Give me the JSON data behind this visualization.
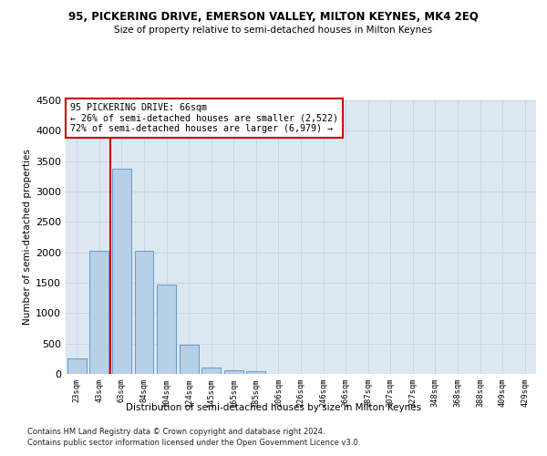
{
  "title": "95, PICKERING DRIVE, EMERSON VALLEY, MILTON KEYNES, MK4 2EQ",
  "subtitle": "Size of property relative to semi-detached houses in Milton Keynes",
  "xlabel": "Distribution of semi-detached houses by size in Milton Keynes",
  "ylabel": "Number of semi-detached properties",
  "categories": [
    "23sqm",
    "43sqm",
    "63sqm",
    "84sqm",
    "104sqm",
    "124sqm",
    "145sqm",
    "165sqm",
    "185sqm",
    "206sqm",
    "226sqm",
    "246sqm",
    "266sqm",
    "287sqm",
    "307sqm",
    "327sqm",
    "348sqm",
    "368sqm",
    "388sqm",
    "409sqm",
    "429sqm"
  ],
  "bar_values": [
    250,
    2020,
    3370,
    2020,
    1470,
    480,
    100,
    55,
    50,
    0,
    0,
    0,
    0,
    0,
    0,
    0,
    0,
    0,
    0,
    0,
    0
  ],
  "bar_color": "#b8cfe8",
  "bar_edgecolor": "#6699cc",
  "ylim": [
    0,
    4500
  ],
  "yticks": [
    0,
    500,
    1000,
    1500,
    2000,
    2500,
    3000,
    3500,
    4000,
    4500
  ],
  "vline_x": 1.5,
  "vline_color": "#cc0000",
  "annotation_line1": "95 PICKERING DRIVE: 66sqm",
  "annotation_line2": "← 26% of semi-detached houses are smaller (2,522)",
  "annotation_line3": "72% of semi-detached houses are larger (6,979) →",
  "annotation_box_color": "#cc0000",
  "footer1": "Contains HM Land Registry data © Crown copyright and database right 2024.",
  "footer2": "Contains public sector information licensed under the Open Government Licence v3.0.",
  "grid_color": "#c8d4e8",
  "background_color": "#dce8f0"
}
